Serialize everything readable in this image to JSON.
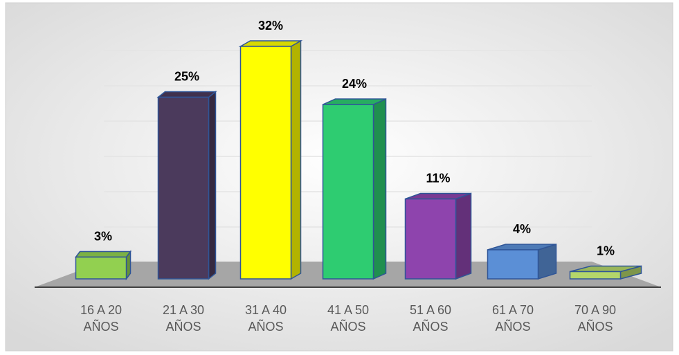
{
  "chart_data": {
    "type": "bar3d",
    "categories": [
      "16 A 20 AÑOS",
      "21 A 30 AÑOS",
      "31 A 40 AÑOS",
      "41 A 50 AÑOS",
      "51 A 60 AÑOS",
      "61 A 70 AÑOS",
      "70 A 90 AÑOS"
    ],
    "values": [
      3,
      25,
      32,
      24,
      11,
      4,
      1
    ],
    "value_labels": [
      "3%",
      "25%",
      "32%",
      "24%",
      "11%",
      "4%",
      "1%"
    ],
    "colors": [
      "#92d050",
      "#4b3a5c",
      "#ffff00",
      "#2ecc71",
      "#8e44ad",
      "#5b8fd6",
      "#b4d66a"
    ]
  }
}
